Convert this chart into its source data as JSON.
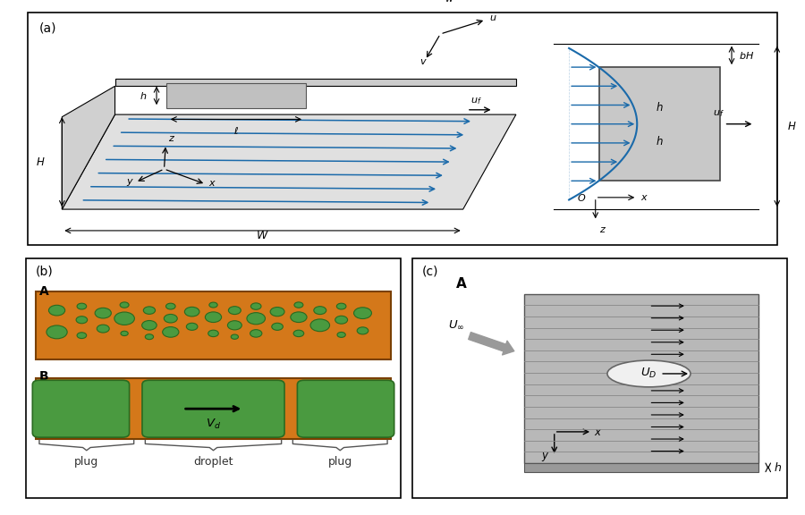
{
  "bg_color": "#ffffff",
  "orange_color": "#d4781a",
  "green_color": "#4a9a40",
  "green_edge_color": "#2a6a20",
  "blue_color": "#1a6aaa",
  "label_fontsize": 10,
  "annot_fontsize": 8.5,
  "circles_a": [
    [
      0.06,
      0.72,
      0.055
    ],
    [
      0.06,
      0.4,
      0.07
    ],
    [
      0.13,
      0.78,
      0.032
    ],
    [
      0.13,
      0.58,
      0.038
    ],
    [
      0.13,
      0.35,
      0.032
    ],
    [
      0.19,
      0.68,
      0.055
    ],
    [
      0.19,
      0.45,
      0.042
    ],
    [
      0.25,
      0.8,
      0.03
    ],
    [
      0.25,
      0.6,
      0.068
    ],
    [
      0.25,
      0.38,
      0.025
    ],
    [
      0.32,
      0.72,
      0.04
    ],
    [
      0.32,
      0.5,
      0.05
    ],
    [
      0.32,
      0.33,
      0.028
    ],
    [
      0.38,
      0.78,
      0.032
    ],
    [
      0.38,
      0.6,
      0.045
    ],
    [
      0.38,
      0.4,
      0.055
    ],
    [
      0.44,
      0.7,
      0.05
    ],
    [
      0.44,
      0.48,
      0.038
    ],
    [
      0.5,
      0.8,
      0.028
    ],
    [
      0.5,
      0.62,
      0.055
    ],
    [
      0.5,
      0.38,
      0.035
    ],
    [
      0.56,
      0.72,
      0.042
    ],
    [
      0.56,
      0.5,
      0.048
    ],
    [
      0.56,
      0.33,
      0.025
    ],
    [
      0.62,
      0.78,
      0.035
    ],
    [
      0.62,
      0.6,
      0.062
    ],
    [
      0.62,
      0.38,
      0.04
    ],
    [
      0.68,
      0.7,
      0.048
    ],
    [
      0.68,
      0.48,
      0.038
    ],
    [
      0.74,
      0.8,
      0.03
    ],
    [
      0.74,
      0.62,
      0.055
    ],
    [
      0.74,
      0.38,
      0.035
    ],
    [
      0.8,
      0.72,
      0.042
    ],
    [
      0.8,
      0.5,
      0.065
    ],
    [
      0.86,
      0.78,
      0.032
    ],
    [
      0.86,
      0.58,
      0.042
    ],
    [
      0.86,
      0.36,
      0.028
    ],
    [
      0.92,
      0.68,
      0.06
    ],
    [
      0.92,
      0.42,
      0.038
    ],
    [
      0.98,
      0.75,
      0.048
    ],
    [
      0.98,
      0.52,
      0.055
    ]
  ]
}
